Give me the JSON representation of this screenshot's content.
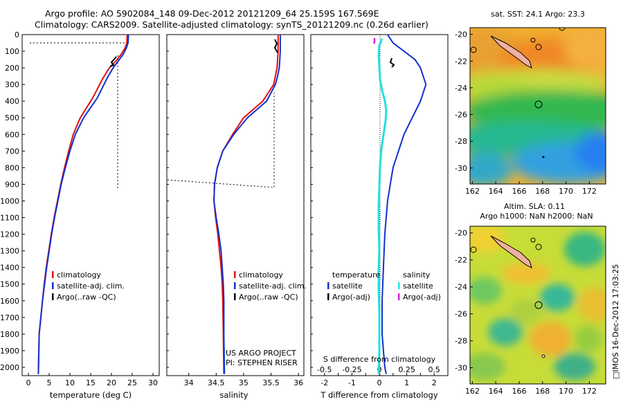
{
  "title": {
    "line1": "Argo profile: AO 5902084_148 09-Dec-2012 20121209_64 25.159S 167.569E",
    "line2": "Climatology: CARS2009. Satellite-adjusted climatology: synTS_20121209.nc (0.26d earlier)"
  },
  "colors": {
    "climatology": "#e01010",
    "satellite": "#1030d0",
    "argo": "#000000",
    "s_satellite": "#20e0e0",
    "s_argo": "#e020e0"
  },
  "depth_axis": {
    "ylim": [
      0,
      2050
    ],
    "ticks": [
      "0",
      "100",
      "200",
      "300",
      "400",
      "500",
      "600",
      "700",
      "800",
      "900",
      "1000",
      "1100",
      "1200",
      "1300",
      "1400",
      "1500",
      "1600",
      "1700",
      "1800",
      "1900",
      "2000"
    ]
  },
  "chart_data": [
    {
      "type": "line",
      "xlabel": "temperature (deg C)",
      "xlim": [
        -1.5,
        31.5
      ],
      "xticks": [
        "0",
        "5",
        "10",
        "15",
        "20",
        "25",
        "30"
      ],
      "ylim": [
        0,
        2050
      ],
      "legend": [
        "climatology",
        "satellite-adj. clim.",
        "Argo(..raw -QC)"
      ],
      "series": [
        {
          "name": "climatology",
          "x": [
            23.8,
            23.7,
            23.3,
            22.3,
            21.0,
            19.5,
            18.0,
            15.5,
            12.5,
            10.8,
            9.7,
            8.7,
            7.8,
            7.0,
            6.2,
            5.5,
            4.9,
            4.3,
            3.8,
            3.4,
            3.0,
            2.6,
            2.4
          ],
          "y": [
            0,
            50,
            80,
            120,
            160,
            200,
            260,
            380,
            500,
            600,
            700,
            800,
            900,
            1000,
            1100,
            1200,
            1300,
            1400,
            1500,
            1600,
            1700,
            1800,
            2040
          ]
        },
        {
          "name": "satellite-adj. clim.",
          "x": [
            24.1,
            24.0,
            23.6,
            22.8,
            21.6,
            20.4,
            19.0,
            16.6,
            13.3,
            11.3,
            10.0,
            8.9,
            7.9,
            7.1,
            6.3,
            5.6,
            5.0,
            4.4,
            3.9,
            3.4,
            3.0,
            2.6,
            2.4
          ],
          "y": [
            0,
            50,
            80,
            120,
            160,
            200,
            260,
            380,
            500,
            600,
            700,
            800,
            900,
            1000,
            1100,
            1200,
            1300,
            1400,
            1500,
            1600,
            1700,
            1800,
            2040
          ]
        }
      ]
    },
    {
      "type": "line",
      "xlabel": "salinity",
      "xlim": [
        33.6,
        36.1
      ],
      "xticks": [
        "34",
        "34.5",
        "35",
        "35.5",
        "36"
      ],
      "ylim": [
        0,
        2050
      ],
      "legend": [
        "climatology",
        "satellite-adj. clim.",
        "Argo(..raw -QC)"
      ],
      "series": [
        {
          "name": "climatology",
          "x": [
            35.63,
            35.63,
            35.62,
            35.61,
            35.58,
            35.55,
            35.35,
            35.0,
            34.8,
            34.62,
            34.52,
            34.47,
            34.46,
            34.49,
            34.53,
            34.56,
            34.59,
            34.61,
            34.62,
            34.63,
            34.64
          ],
          "y": [
            0,
            100,
            150,
            200,
            250,
            300,
            400,
            500,
            600,
            700,
            800,
            900,
            1000,
            1100,
            1200,
            1300,
            1400,
            1500,
            1600,
            1800,
            2040
          ]
        },
        {
          "name": "satellite-adj. clim.",
          "x": [
            35.67,
            35.67,
            35.66,
            35.65,
            35.62,
            35.58,
            35.42,
            35.07,
            34.82,
            34.62,
            34.52,
            34.47,
            34.46,
            34.5,
            34.55,
            34.59,
            34.61,
            34.63,
            34.64,
            34.64,
            34.65
          ],
          "y": [
            0,
            100,
            150,
            200,
            250,
            300,
            400,
            500,
            600,
            700,
            800,
            900,
            1000,
            1100,
            1200,
            1300,
            1400,
            1500,
            1600,
            1800,
            2040
          ]
        }
      ]
    },
    {
      "type": "line",
      "xlabel": "T difference from climatology",
      "xlabel_top": "S difference from climatology",
      "xlim": [
        -2.5,
        2.5
      ],
      "xticks": [
        "-2",
        "-1.5",
        "-1",
        "-0.5",
        "0",
        "0.5",
        "1",
        "1.5",
        "2"
      ],
      "xticks_T": [
        "-2",
        "-1",
        "0",
        "1",
        "2"
      ],
      "xticks_S": [
        "-0.5",
        "-0.25",
        "0",
        "0.25",
        "0.5"
      ],
      "ylim": [
        0,
        2050
      ],
      "legend_temperature": [
        "temperature",
        "satellite",
        "Argo(-adj)"
      ],
      "legend_salinity": [
        "salinity",
        "satellite",
        "Argo(-adj)"
      ],
      "series": [
        {
          "name": "satellite",
          "x": [
            0.3,
            0.5,
            0.9,
            1.3,
            1.5,
            1.7,
            1.5,
            1.2,
            0.9,
            0.7,
            0.5,
            0.4,
            0.3,
            0.25,
            0.2,
            0.15,
            0.1,
            0.1,
            0.15,
            0.2,
            0.25
          ],
          "y": [
            0,
            50,
            100,
            150,
            200,
            300,
            400,
            500,
            600,
            700,
            800,
            900,
            1000,
            1100,
            1200,
            1400,
            1600,
            1800,
            1900,
            2000,
            2040
          ]
        },
        {
          "name": "Argo(-adj)",
          "x": [
            0.9,
            1.0,
            1.1,
            0.95
          ],
          "y": [
            150,
            170,
            190,
            200
          ]
        }
      ]
    },
    {
      "type": "heatmap",
      "title": "sat. SST: 24.1 Argo: 23.3",
      "xticks": [
        "162",
        "164",
        "166",
        "168",
        "170",
        "172"
      ],
      "yticks": [
        "-20",
        "-22",
        "-24",
        "-26",
        "-28",
        "-30"
      ],
      "xlim": [
        161.8,
        173.4
      ],
      "ylim": [
        -19.5,
        -31.2
      ]
    },
    {
      "type": "heatmap",
      "title_line1": "Altim. SLA: 0.11",
      "title_line2": "Argo h1000: NaN h2000: NaN",
      "xticks": [
        "162",
        "164",
        "166",
        "168",
        "170",
        "172"
      ],
      "yticks": [
        "-20",
        "-22",
        "-24",
        "-26",
        "-28",
        "-30"
      ],
      "xlim": [
        161.8,
        173.4
      ],
      "ylim": [
        -19.5,
        -31.2
      ]
    }
  ],
  "credits": {
    "project": "US ARGO PROJECT",
    "pi": "PI: STEPHEN RISER"
  },
  "side_stamp": "□IMOS 16-Dec-2012 17:03:25"
}
